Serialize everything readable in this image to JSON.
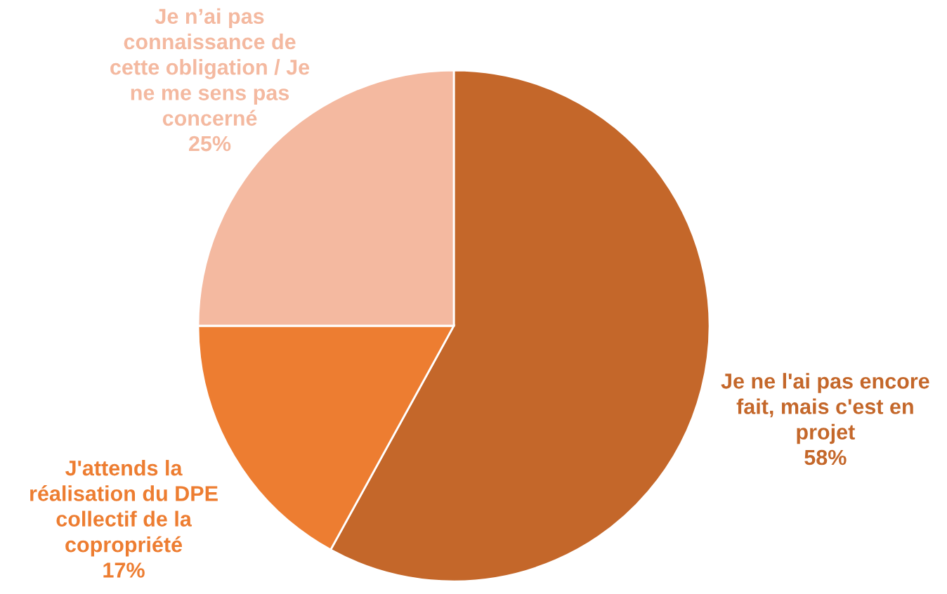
{
  "chart_data": {
    "type": "pie",
    "categories": [
      "Je ne l'ai pas encore\nfait, mais c'est en\nprojet",
      "J'attends la\nréalisation du DPE\ncollectif de la\ncopropriété",
      "Je n’ai pas\nconnaissance de\ncette obligation / Je\nne me sens pas\nconcerné"
    ],
    "values": [
      58,
      17,
      25
    ],
    "value_labels": [
      "58%",
      "17%",
      "25%"
    ],
    "colors": [
      "#c4672a",
      "#ed7d31",
      "#f4b9a0"
    ],
    "legend": false
  }
}
